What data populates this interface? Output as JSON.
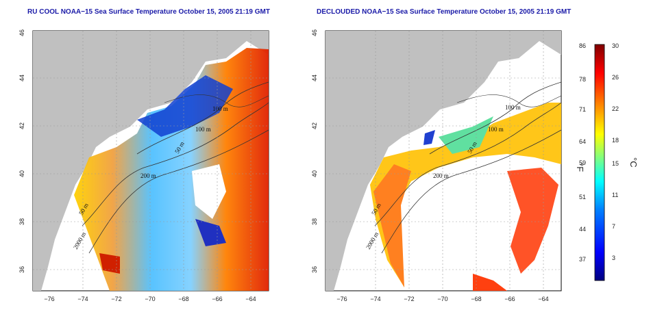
{
  "maps": [
    {
      "title": "RU COOL NOAA−15 Sea Surface Temperature October 15, 2005 21:19 GMT",
      "x_ticks": [
        "−76",
        "−74",
        "−72",
        "−70",
        "−68",
        "−66",
        "−64"
      ],
      "y_ticks": [
        "36",
        "38",
        "40",
        "42",
        "44",
        "46"
      ],
      "contour_labels": [
        "2000 m",
        "50 m",
        "200 m",
        "50 m",
        "100 m",
        "100 m"
      ]
    },
    {
      "title": "DECLOUDED NOAA−15 Sea Surface Temperature October 15, 2005 21:19 GMT",
      "x_ticks": [
        "−76",
        "−74",
        "−72",
        "−70",
        "−68",
        "−66",
        "−64"
      ],
      "y_ticks": [
        "36",
        "38",
        "40",
        "42",
        "44",
        "46"
      ],
      "contour_labels": [
        "2000 m",
        "50 m",
        "200 m",
        "50 m",
        "100 m",
        "100 m"
      ]
    }
  ],
  "colorbar": {
    "left_unit": "°F",
    "right_unit": "°C",
    "fahrenheit_ticks": [
      "86",
      "78",
      "71",
      "64",
      "59",
      "51",
      "44",
      "37"
    ],
    "celsius_ticks": [
      "30",
      "26",
      "22",
      "18",
      "15",
      "11",
      "7",
      "3"
    ],
    "range_celsius": [
      0,
      30
    ],
    "colors": [
      "#00007f",
      "#0000ff",
      "#0080ff",
      "#00ffff",
      "#80ff80",
      "#ffff00",
      "#ff8000",
      "#ff0000",
      "#7f0000"
    ]
  },
  "colors": {
    "land": "#c0c0c0",
    "title": "#1a1aa8"
  }
}
